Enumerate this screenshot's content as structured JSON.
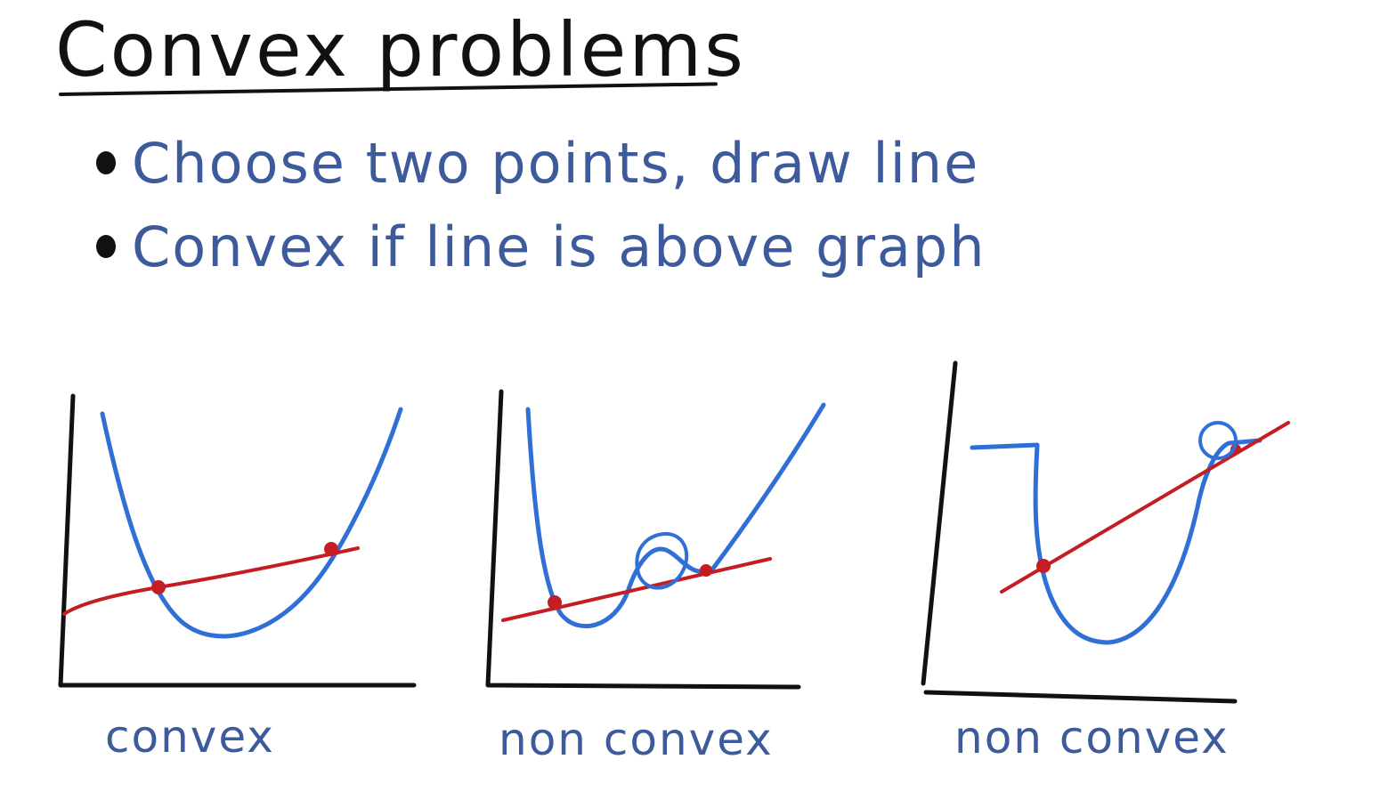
{
  "title": "Convex problems",
  "bullets": [
    "Choose two points, draw line",
    "Convex if line is above graph"
  ],
  "panels": [
    {
      "caption": "convex"
    },
    {
      "caption": "non convex"
    },
    {
      "caption": "non convex"
    }
  ],
  "colors": {
    "ink": "#111111",
    "curve": "#2f6fd6",
    "line": "#c41e24",
    "text": "#3c5a9c"
  }
}
